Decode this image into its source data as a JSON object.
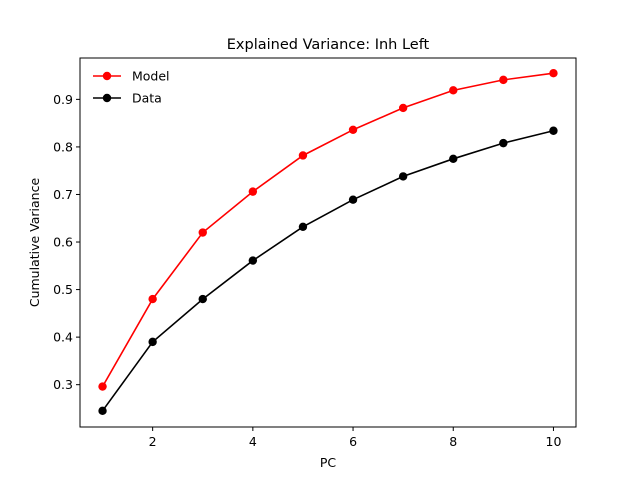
{
  "chart_data": {
    "type": "line",
    "title": "Explained Variance: Inh Left",
    "xlabel": "PC",
    "ylabel": "Cumulative Variance",
    "x": [
      1,
      2,
      3,
      4,
      5,
      6,
      7,
      8,
      9,
      10
    ],
    "xlim": [
      0.55,
      10.45
    ],
    "ylim": [
      0.211,
      0.987
    ],
    "xticks": [
      2,
      4,
      6,
      8,
      10
    ],
    "yticks": [
      0.3,
      0.4,
      0.5,
      0.6,
      0.7,
      0.8,
      0.9
    ],
    "xtick_labels": [
      "2",
      "4",
      "6",
      "8",
      "10"
    ],
    "ytick_labels": [
      "0.3",
      "0.4",
      "0.5",
      "0.6",
      "0.7",
      "0.8",
      "0.9"
    ],
    "grid": false,
    "legend_position": "top-left",
    "series": [
      {
        "name": "Model",
        "color": "#ff0000",
        "marker": "circle",
        "values": [
          0.296,
          0.48,
          0.62,
          0.706,
          0.782,
          0.836,
          0.882,
          0.919,
          0.941,
          0.955
        ]
      },
      {
        "name": "Data",
        "color": "#000000",
        "marker": "circle",
        "values": [
          0.245,
          0.39,
          0.48,
          0.561,
          0.632,
          0.689,
          0.738,
          0.775,
          0.808,
          0.834
        ]
      }
    ]
  }
}
